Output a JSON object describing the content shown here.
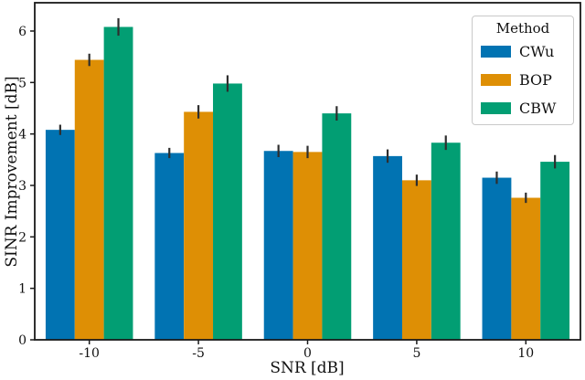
{
  "figure": {
    "background": "#ffffff",
    "spine_color": "#1a1a1a"
  },
  "chart_data": {
    "type": "bar",
    "title": "",
    "xlabel": "SNR [dB]",
    "ylabel": "SINR Improvement [dB]",
    "categories": [
      "-10",
      "-5",
      "0",
      "5",
      "10"
    ],
    "series": [
      {
        "name": "CWu",
        "color": "#0173B2",
        "values": [
          4.08,
          3.63,
          3.67,
          3.57,
          3.15
        ],
        "errors": [
          0.1,
          0.1,
          0.12,
          0.13,
          0.12
        ]
      },
      {
        "name": "BOP",
        "color": "#DE8F05",
        "values": [
          5.44,
          4.43,
          3.65,
          3.1,
          2.76
        ],
        "errors": [
          0.12,
          0.13,
          0.12,
          0.11,
          0.1
        ]
      },
      {
        "name": "CBW",
        "color": "#029E73",
        "values": [
          6.08,
          4.98,
          4.4,
          3.83,
          3.46
        ],
        "errors": [
          0.17,
          0.16,
          0.14,
          0.14,
          0.13
        ]
      }
    ],
    "error_bar_color": "#2e2e2e",
    "ylim": [
      0,
      6.55
    ],
    "yticks": [
      0,
      1,
      2,
      3,
      4,
      5,
      6
    ],
    "grid": false,
    "legend": {
      "title": "Method",
      "position": "upper right"
    }
  }
}
